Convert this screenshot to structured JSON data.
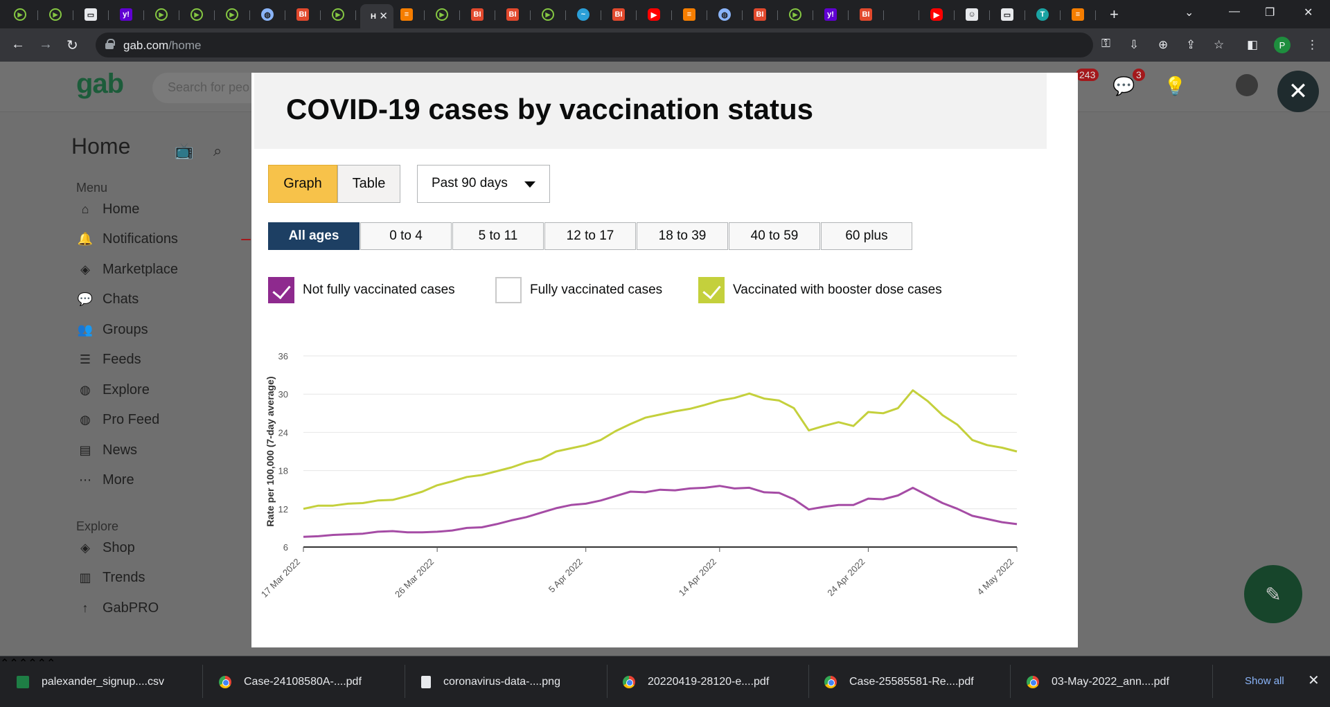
{
  "browser": {
    "tabs": [
      {
        "icon": "rumble-icon",
        "kind": "rumble",
        "glyph": "▶"
      },
      {
        "icon": "rumble-icon",
        "kind": "rumble",
        "glyph": "▶"
      },
      {
        "icon": "gmail-icon",
        "kind": "gmail",
        "glyph": "▭"
      },
      {
        "icon": "yahoo-icon",
        "kind": "yahoo",
        "glyph": "y!"
      },
      {
        "icon": "rumble-icon",
        "kind": "rumble",
        "glyph": "▶"
      },
      {
        "icon": "rumble-icon",
        "kind": "rumble",
        "glyph": "▶"
      },
      {
        "icon": "rumble-icon",
        "kind": "rumble",
        "glyph": "▶"
      },
      {
        "icon": "globe-icon",
        "kind": "globe",
        "glyph": "◍"
      },
      {
        "icon": "business-insider-icon",
        "kind": "bi",
        "glyph": "BI"
      },
      {
        "icon": "rumble-icon",
        "kind": "rumble",
        "glyph": "▶"
      },
      {
        "icon": "gab-icon",
        "kind": "active",
        "glyph": "H",
        "active": true
      },
      {
        "icon": "blogger-icon",
        "kind": "blogger",
        "glyph": "≡"
      },
      {
        "icon": "rumble-icon",
        "kind": "rumble",
        "glyph": "▶"
      },
      {
        "icon": "business-insider-icon",
        "kind": "bi",
        "glyph": "BI"
      },
      {
        "icon": "business-insider-icon",
        "kind": "bi",
        "glyph": "BI"
      },
      {
        "icon": "rumble-icon",
        "kind": "rumble",
        "glyph": "▶"
      },
      {
        "icon": "bird-icon",
        "kind": "bird",
        "glyph": "~"
      },
      {
        "icon": "business-insider-icon",
        "kind": "bi",
        "glyph": "BI"
      },
      {
        "icon": "youtube-icon",
        "kind": "yt",
        "glyph": "▶"
      },
      {
        "icon": "blogger-icon",
        "kind": "blogger",
        "glyph": "≡"
      },
      {
        "icon": "globe-icon",
        "kind": "globe",
        "glyph": "◍"
      },
      {
        "icon": "business-insider-icon",
        "kind": "bi",
        "glyph": "BI"
      },
      {
        "icon": "rumble-icon",
        "kind": "rumble",
        "glyph": "▶"
      },
      {
        "icon": "yahoo-icon",
        "kind": "yahoo",
        "glyph": "y!"
      },
      {
        "icon": "business-insider-icon",
        "kind": "bi",
        "glyph": "BI"
      },
      {
        "icon": "blank-icon",
        "kind": "blank",
        "glyph": ""
      },
      {
        "icon": "youtube-icon",
        "kind": "yt",
        "glyph": "▶"
      },
      {
        "icon": "person-icon",
        "kind": "gmail",
        "glyph": "☺"
      },
      {
        "icon": "gmail-icon",
        "kind": "gmail",
        "glyph": "▭"
      },
      {
        "icon": "teal-icon",
        "kind": "teal",
        "glyph": "T"
      },
      {
        "icon": "blogger-icon",
        "kind": "blogger",
        "glyph": "≡"
      }
    ],
    "url_host": "gab.com",
    "url_path": "/home",
    "profile_initial": "P"
  },
  "gab": {
    "logo": "gab",
    "search_placeholder": "Search for peo",
    "notif_count": "243",
    "chat_count": "3",
    "home_title": "Home",
    "menu_label": "Menu",
    "menu": [
      {
        "label": "Home",
        "icon": "home-icon",
        "glyph": "⌂"
      },
      {
        "label": "Notifications",
        "icon": "bell-icon",
        "glyph": "🔔"
      },
      {
        "label": "Marketplace",
        "icon": "tag-icon",
        "glyph": "◈"
      },
      {
        "label": "Chats",
        "icon": "chat-icon",
        "glyph": "💬"
      },
      {
        "label": "Groups",
        "icon": "groups-icon",
        "glyph": "👥"
      },
      {
        "label": "Feeds",
        "icon": "feeds-icon",
        "glyph": "☰"
      },
      {
        "label": "Explore",
        "icon": "globe-icon",
        "glyph": "◍"
      },
      {
        "label": "Pro Feed",
        "icon": "globe-icon",
        "glyph": "◍"
      },
      {
        "label": "News",
        "icon": "news-icon",
        "glyph": "▤"
      },
      {
        "label": "More",
        "icon": "more-icon",
        "glyph": "⋯"
      }
    ],
    "explore_label": "Explore",
    "explore": [
      {
        "label": "Shop",
        "icon": "tag-icon",
        "glyph": "◈"
      },
      {
        "label": "Trends",
        "icon": "trends-icon",
        "glyph": "▥"
      },
      {
        "label": "GabPRO",
        "icon": "arrow-up-icon",
        "glyph": "↑"
      }
    ]
  },
  "modal": {
    "title": "COVID-19 cases by vaccination status",
    "view_graph": "Graph",
    "view_table": "Table",
    "period": "Past 90 days",
    "age_groups": [
      "All ages",
      "0 to 4",
      "5 to 11",
      "12 to 17",
      "18 to 39",
      "40 to 59",
      "60 plus"
    ],
    "selected_age": "All ages",
    "legend": {
      "not_fully": "Not fully vaccinated cases",
      "fully": "Fully vaccinated cases",
      "booster": "Vaccinated with booster dose cases"
    }
  },
  "chart_data": {
    "type": "line",
    "ylabel": "Rate per 100,000 (7-day average)",
    "ylim": [
      6,
      36
    ],
    "yticks": [
      6,
      12,
      18,
      24,
      30,
      36
    ],
    "x_tick_labels": [
      "17 Mar 2022",
      "26 Mar 2022",
      "5 Apr 2022",
      "14 Apr 2022",
      "24 Apr 2022",
      "4 May 2022"
    ],
    "x_tick_days": [
      0,
      9,
      19,
      28,
      38,
      48
    ],
    "grid": true,
    "series": [
      {
        "name": "Vaccinated with booster dose cases",
        "color": "#c4d03c",
        "days": [
          0,
          1,
          2,
          3,
          4,
          5,
          6,
          7,
          8,
          9,
          10,
          11,
          12,
          13,
          14,
          15,
          16,
          17,
          18,
          19,
          20,
          21,
          22,
          23,
          24,
          25,
          26,
          27,
          28,
          29,
          30,
          31,
          32,
          33,
          34,
          35,
          36,
          37,
          38,
          39,
          40,
          41,
          42,
          43,
          44,
          45,
          46,
          47,
          48
        ],
        "values": [
          12.0,
          12.5,
          12.5,
          12.8,
          12.9,
          13.3,
          13.4,
          14.0,
          14.7,
          15.7,
          16.3,
          17.0,
          17.3,
          17.9,
          18.5,
          19.3,
          19.8,
          21.0,
          21.5,
          22.0,
          22.8,
          24.2,
          25.3,
          26.3,
          26.8,
          27.3,
          27.7,
          28.3,
          29.0,
          29.4,
          30.1,
          29.3,
          29.0,
          27.8,
          24.3,
          25.0,
          25.6,
          25.0,
          27.2,
          27.0,
          27.8,
          30.6,
          28.9,
          26.7,
          25.2,
          22.8,
          22.0,
          21.6,
          21.0
        ]
      },
      {
        "name": "Not fully vaccinated cases",
        "color": "#a54ca5",
        "days": [
          0,
          1,
          2,
          3,
          4,
          5,
          6,
          7,
          8,
          9,
          10,
          11,
          12,
          13,
          14,
          15,
          16,
          17,
          18,
          19,
          20,
          21,
          22,
          23,
          24,
          25,
          26,
          27,
          28,
          29,
          30,
          31,
          32,
          33,
          34,
          35,
          36,
          37,
          38,
          39,
          40,
          41,
          42,
          43,
          44,
          45,
          46,
          47,
          48
        ],
        "values": [
          7.6,
          7.7,
          7.9,
          8.0,
          8.1,
          8.4,
          8.5,
          8.3,
          8.3,
          8.4,
          8.6,
          9.0,
          9.1,
          9.6,
          10.2,
          10.7,
          11.4,
          12.1,
          12.6,
          12.8,
          13.3,
          14.0,
          14.7,
          14.6,
          15.0,
          14.9,
          15.2,
          15.3,
          15.6,
          15.2,
          15.3,
          14.6,
          14.5,
          13.5,
          11.9,
          12.3,
          12.6,
          12.6,
          13.6,
          13.5,
          14.1,
          15.3,
          14.1,
          12.9,
          12.0,
          10.9,
          10.4,
          9.9,
          9.6
        ]
      }
    ]
  },
  "downloads": [
    {
      "name": "palexander_signup....csv",
      "icon": "excel-icon"
    },
    {
      "name": "Case-24108580A-....pdf",
      "icon": "chrome-icon"
    },
    {
      "name": "coronavirus-data-....png",
      "icon": "file-icon"
    },
    {
      "name": "20220419-28120-e....pdf",
      "icon": "chrome-icon"
    },
    {
      "name": "Case-25585581-Re....pdf",
      "icon": "chrome-icon"
    },
    {
      "name": "03-May-2022_ann....pdf",
      "icon": "chrome-icon"
    }
  ],
  "show_all": "Show all"
}
